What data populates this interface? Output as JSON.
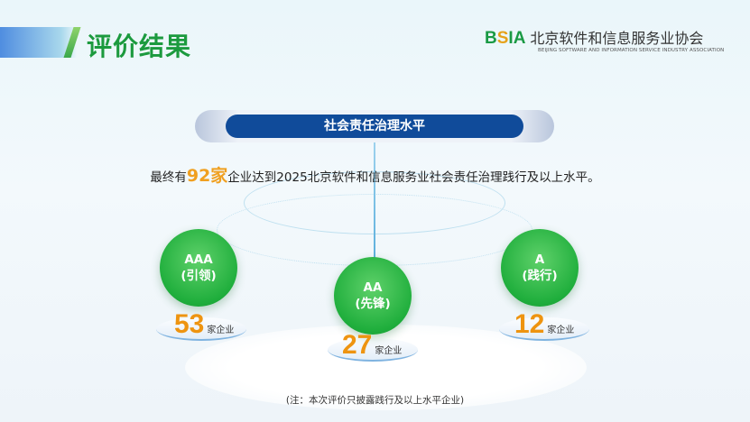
{
  "header": {
    "title": "评价结果",
    "logo": {
      "abbr_pre": "B",
      "abbr_s": "S",
      "abbr_post": "IA",
      "name_cn": "北京软件和信息服务业协会",
      "name_en": "BEIJING SOFTWARE AND INFORMATION SERVICE INDUSTRY ASSOCIATION"
    }
  },
  "section_title": "社会责任治理水平",
  "summary": {
    "prefix": "最终有",
    "highlight": "92家",
    "suffix": "企业达到2025北京软件和信息服务业社会责任治理践行及以上水平。"
  },
  "levels": [
    {
      "grade": "AAA",
      "label": "(引领)",
      "count": "53",
      "unit": "家企业"
    },
    {
      "grade": "AA",
      "label": "(先锋)",
      "count": "27",
      "unit": "家企业"
    },
    {
      "grade": "A",
      "label": "(践行)",
      "count": "12",
      "unit": "家企业"
    }
  ],
  "note": "(注：本次评价只披露践行及以上水平企业)",
  "colors": {
    "title_green": "#1c9a3e",
    "pill_blue": "#104b9a",
    "number_orange": "#ee9410",
    "circle_green": "#1fae3c"
  }
}
